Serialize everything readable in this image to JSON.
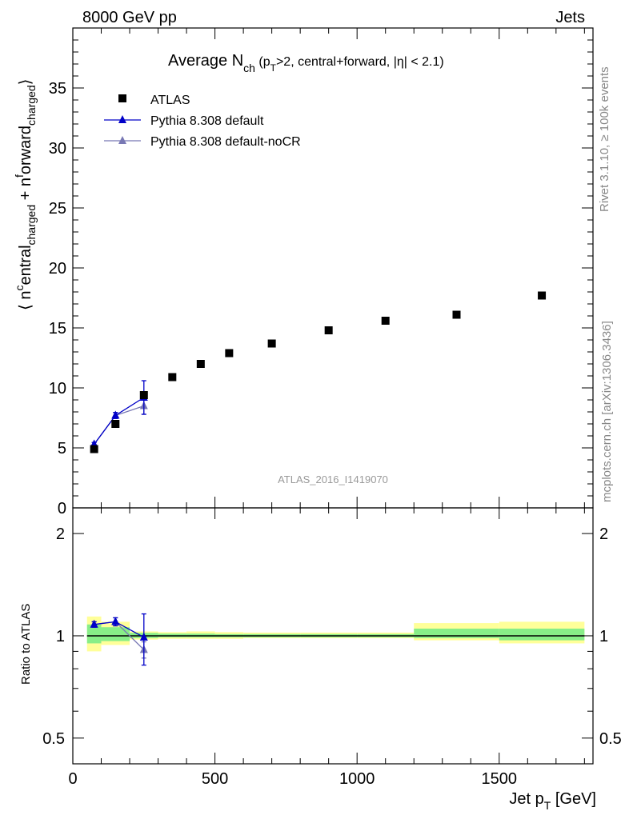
{
  "header": {
    "left": "8000 GeV pp",
    "right": "Jets"
  },
  "side_labels": {
    "rivet": "Rivet 3.1.10, ≥ 100k events",
    "mcplots": "mcplots.cern.ch [arXiv:1306.3436]"
  },
  "chart_data": [
    {
      "type": "scatter",
      "title": "Average N_ch (p_T>2, central+forward, |η| < 2.1)",
      "title_parts": {
        "main": "Average N",
        "sub": "ch",
        "rest_a": " (p",
        "rest_sub": "T",
        "rest_b": ">2, central+forward, |η| < 2.1)"
      },
      "ylabel": "⟨ n^central_charged + n^forward_charged ⟩",
      "ylabel_parts": {
        "open": "⟨ n",
        "sup1": "c",
        "a": "entral",
        "sub1": "charged",
        "b": " + n",
        "sup2": "f",
        "c": "orward",
        "sub2": "charged",
        "close": "⟩"
      },
      "analysis_label": "ATLAS_2016_I1419070",
      "xlim": [
        0,
        1830
      ],
      "ylim": [
        0,
        40
      ],
      "yticks": [
        0,
        5,
        10,
        15,
        20,
        25,
        30,
        35
      ],
      "legend_position": "top-left",
      "series": [
        {
          "name": "ATLAS",
          "color": "#000000",
          "marker": "square",
          "x": [
            75,
            150,
            250,
            350,
            450,
            550,
            700,
            900,
            1100,
            1350,
            1650
          ],
          "y": [
            4.9,
            7.0,
            9.4,
            10.9,
            12.0,
            12.9,
            13.7,
            14.8,
            15.6,
            16.1,
            17.7
          ]
        },
        {
          "name": "Pythia 8.308 default",
          "color": "#0000c8",
          "marker": "triangle",
          "x": [
            75,
            150,
            250
          ],
          "y": [
            5.3,
            7.7,
            9.2
          ],
          "yerr": [
            0.15,
            0.25,
            1.4
          ]
        },
        {
          "name": "Pythia 8.308 default-noCR",
          "color": "#7878b4",
          "marker": "triangle",
          "x": [
            75,
            150,
            250
          ],
          "y": [
            5.3,
            7.7,
            8.5
          ],
          "yerr": [
            0.15,
            0.25,
            0.7
          ]
        }
      ]
    },
    {
      "type": "line",
      "ylabel": "Ratio to ATLAS",
      "xlabel": "Jet p_T [GeV]",
      "xlabel_parts": {
        "a": "Jet p",
        "sub": "T",
        "b": " [GeV]"
      },
      "xlim": [
        0,
        1830
      ],
      "xticks": [
        0,
        500,
        1000,
        1500
      ],
      "ylim": [
        0.42,
        2.38
      ],
      "yticks": [
        0.5,
        1,
        2
      ],
      "log_y": true,
      "bands": [
        {
          "x0": 50,
          "x1": 100,
          "inner": [
            0.95,
            1.08
          ],
          "outer": [
            0.9,
            1.14
          ]
        },
        {
          "x0": 100,
          "x1": 200,
          "inner": [
            0.965,
            1.06
          ],
          "outer": [
            0.94,
            1.1
          ]
        },
        {
          "x0": 200,
          "x1": 300,
          "inner": [
            0.985,
            1.02
          ],
          "outer": [
            0.975,
            1.03
          ]
        },
        {
          "x0": 300,
          "x1": 400,
          "inner": [
            0.99,
            1.015
          ],
          "outer": [
            0.98,
            1.025
          ]
        },
        {
          "x0": 400,
          "x1": 500,
          "inner": [
            0.99,
            1.015
          ],
          "outer": [
            0.98,
            1.03
          ]
        },
        {
          "x0": 500,
          "x1": 600,
          "inner": [
            0.99,
            1.012
          ],
          "outer": [
            0.98,
            1.025
          ]
        },
        {
          "x0": 600,
          "x1": 800,
          "inner": [
            0.99,
            1.012
          ],
          "outer": [
            0.985,
            1.022
          ]
        },
        {
          "x0": 800,
          "x1": 1000,
          "inner": [
            0.99,
            1.012
          ],
          "outer": [
            0.985,
            1.022
          ]
        },
        {
          "x0": 1000,
          "x1": 1200,
          "inner": [
            0.99,
            1.012
          ],
          "outer": [
            0.985,
            1.022
          ]
        },
        {
          "x0": 1200,
          "x1": 1500,
          "inner": [
            0.985,
            1.05
          ],
          "outer": [
            0.97,
            1.09
          ]
        },
        {
          "x0": 1500,
          "x1": 1800,
          "inner": [
            0.97,
            1.05
          ],
          "outer": [
            0.95,
            1.1
          ]
        }
      ],
      "series": [
        {
          "name": "Pythia 8.308 default",
          "color": "#0000c8",
          "x": [
            75,
            150,
            250
          ],
          "y": [
            1.08,
            1.1,
            0.99
          ],
          "yerr": [
            0.02,
            0.03,
            0.17
          ]
        },
        {
          "name": "Pythia 8.308 default-noCR",
          "color": "#7878b4",
          "x": [
            75,
            150,
            250
          ],
          "y": [
            1.08,
            1.1,
            0.91
          ],
          "yerr": [
            0.02,
            0.03,
            0.05
          ]
        }
      ]
    }
  ]
}
